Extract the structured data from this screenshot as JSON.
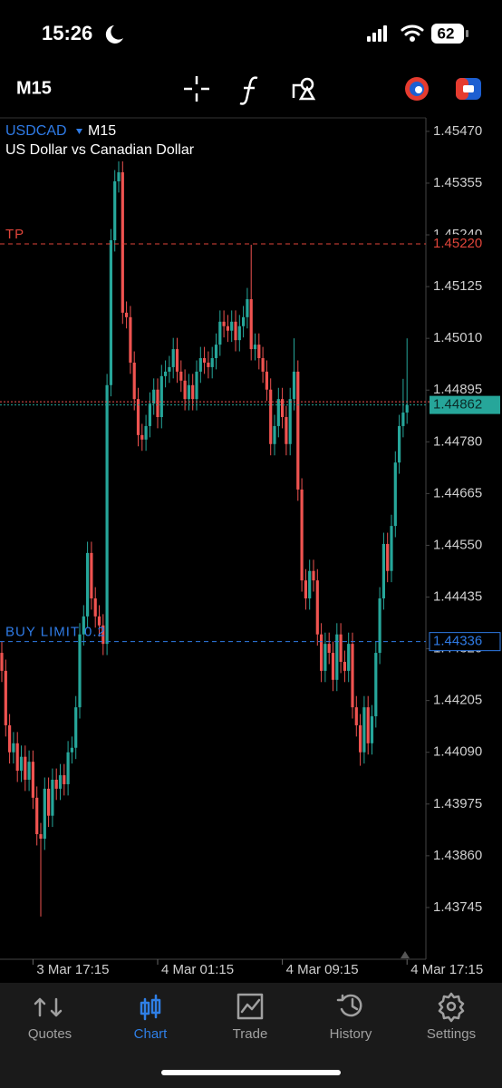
{
  "status_bar": {
    "time": "15:26",
    "battery": 62
  },
  "toolbar": {
    "timeframe": "M15"
  },
  "chart_data": {
    "type": "candlestick",
    "symbol": "USDCAD",
    "timeframe": "M15",
    "subtitle": "US Dollar vs Canadian Dollar",
    "up_color": "#26a69a",
    "down_color": "#ef5350",
    "open": [
      1.44311,
      1.44271,
      1.4415,
      1.4409,
      1.4411,
      1.44049,
      1.4408,
      1.44029,
      1.44069,
      1.43989,
      1.43908,
      1.43898,
      1.44009,
      1.43949,
      1.44029,
      1.44009,
      1.44039,
      1.44019,
      1.4409,
      1.441,
      1.4419,
      1.44352,
      1.44392,
      1.44533,
      1.44432,
      1.44392,
      1.44372,
      1.44331,
      1.44906,
      1.45228,
      1.45359,
      1.45379,
      1.45067,
      1.45057,
      1.44956,
      1.44875,
      1.44795,
      1.44785,
      1.44815,
      1.44865,
      1.44896,
      1.44835,
      1.44926,
      1.44936,
      1.44946,
      1.44986,
      1.44936,
      1.44916,
      1.44875,
      1.44906,
      1.44875,
      1.44936,
      1.44966,
      1.44956,
      1.44946,
      1.44966,
      1.44996,
      1.45047,
      1.45037,
      1.45027,
      1.45047,
      1.45006,
      1.45037,
      1.45057,
      1.45097,
      1.44986,
      1.44996,
      1.44966,
      1.44936,
      1.44896,
      1.44775,
      1.44815,
      1.44875,
      1.44835,
      1.44775,
      1.44875,
      1.44936,
      1.44674,
      1.44472,
      1.44432,
      1.44493,
      1.44472,
      1.44352,
      1.44271,
      1.44331,
      1.44311,
      1.44251,
      1.44352,
      1.44291,
      1.44271,
      1.44331,
      1.4419,
      1.4415,
      1.4409,
      1.4419,
      1.4411,
      1.4417,
      1.44311,
      1.44432,
      1.44553,
      1.44493,
      1.44593,
      1.44734,
      1.44815,
      1.44845
    ],
    "high": [
      1.44336,
      1.44296,
      1.44175,
      1.44135,
      1.44135,
      1.44105,
      1.44105,
      1.44094,
      1.44094,
      1.44014,
      1.43933,
      1.44034,
      1.44034,
      1.44054,
      1.44054,
      1.44064,
      1.44064,
      1.44115,
      1.44125,
      1.44215,
      1.44377,
      1.44417,
      1.44558,
      1.44558,
      1.44457,
      1.44417,
      1.44397,
      1.44931,
      1.45253,
      1.45384,
      1.4542,
      1.45404,
      1.45092,
      1.45082,
      1.44981,
      1.449,
      1.4482,
      1.4484,
      1.4489,
      1.44921,
      1.44921,
      1.44951,
      1.44961,
      1.44971,
      1.45011,
      1.45011,
      1.44961,
      1.44941,
      1.44931,
      1.44931,
      1.44961,
      1.44991,
      1.44991,
      1.44981,
      1.44991,
      1.45021,
      1.45072,
      1.45072,
      1.45062,
      1.45072,
      1.45072,
      1.45062,
      1.45082,
      1.45122,
      1.45218,
      1.45021,
      1.45021,
      1.44991,
      1.44961,
      1.44921,
      1.4484,
      1.449,
      1.449,
      1.4486,
      1.449,
      1.4501,
      1.44961,
      1.44699,
      1.44497,
      1.44518,
      1.44518,
      1.44497,
      1.44377,
      1.44356,
      1.44356,
      1.44336,
      1.44377,
      1.44377,
      1.44316,
      1.44356,
      1.44356,
      1.44215,
      1.44175,
      1.44215,
      1.44215,
      1.44195,
      1.44336,
      1.44457,
      1.44578,
      1.44578,
      1.44618,
      1.44759,
      1.4484,
      1.4492,
      1.4501
    ],
    "low": [
      1.44246,
      1.44125,
      1.44065,
      1.44065,
      1.44024,
      1.44024,
      1.44004,
      1.44004,
      1.43964,
      1.43883,
      1.43725,
      1.43873,
      1.43924,
      1.43924,
      1.43984,
      1.43984,
      1.43994,
      1.43994,
      1.44065,
      1.44075,
      1.44165,
      1.44327,
      1.44367,
      1.44407,
      1.44367,
      1.44347,
      1.44306,
      1.44306,
      1.44881,
      1.45203,
      1.45334,
      1.45042,
      1.45032,
      1.44931,
      1.4485,
      1.4477,
      1.4476,
      1.4476,
      1.4479,
      1.4484,
      1.4481,
      1.4481,
      1.44901,
      1.44911,
      1.44921,
      1.44911,
      1.44891,
      1.4485,
      1.4485,
      1.4485,
      1.4485,
      1.44911,
      1.44931,
      1.44921,
      1.44921,
      1.44941,
      1.44971,
      1.45012,
      1.45002,
      1.45002,
      1.44981,
      1.44981,
      1.45012,
      1.45032,
      1.44961,
      1.44961,
      1.44941,
      1.44911,
      1.44871,
      1.4475,
      1.4475,
      1.4479,
      1.4481,
      1.4475,
      1.4475,
      1.4485,
      1.44649,
      1.44447,
      1.44407,
      1.44407,
      1.44447,
      1.44327,
      1.44246,
      1.44246,
      1.44286,
      1.44226,
      1.44226,
      1.44266,
      1.44246,
      1.44246,
      1.44165,
      1.44125,
      1.4406,
      1.44065,
      1.44085,
      1.44085,
      1.44145,
      1.44286,
      1.44407,
      1.44468,
      1.44468,
      1.44568,
      1.44709,
      1.4479,
      1.4482
    ],
    "close": [
      1.44271,
      1.4415,
      1.4409,
      1.4411,
      1.44049,
      1.4408,
      1.44029,
      1.44069,
      1.43989,
      1.43908,
      1.43898,
      1.44009,
      1.43949,
      1.44029,
      1.44009,
      1.44039,
      1.44019,
      1.4409,
      1.441,
      1.4419,
      1.44352,
      1.44392,
      1.44533,
      1.44432,
      1.44392,
      1.44372,
      1.44331,
      1.44906,
      1.45228,
      1.45359,
      1.45379,
      1.45067,
      1.45057,
      1.44956,
      1.44875,
      1.44795,
      1.44785,
      1.44815,
      1.44865,
      1.44896,
      1.44835,
      1.44926,
      1.44936,
      1.44946,
      1.44986,
      1.44936,
      1.44916,
      1.44875,
      1.44906,
      1.44875,
      1.44936,
      1.44966,
      1.44956,
      1.44946,
      1.44966,
      1.44996,
      1.45047,
      1.45037,
      1.45027,
      1.45047,
      1.45006,
      1.45037,
      1.45057,
      1.45097,
      1.44986,
      1.44996,
      1.44966,
      1.44936,
      1.44896,
      1.44775,
      1.44815,
      1.44875,
      1.44835,
      1.44775,
      1.44875,
      1.44936,
      1.44674,
      1.44472,
      1.44432,
      1.44493,
      1.44472,
      1.44352,
      1.44271,
      1.44331,
      1.44311,
      1.44251,
      1.44352,
      1.44291,
      1.44271,
      1.44331,
      1.4419,
      1.4415,
      1.4409,
      1.4419,
      1.4411,
      1.4417,
      1.44311,
      1.44432,
      1.44553,
      1.44493,
      1.44593,
      1.44734,
      1.44815,
      1.44845,
      1.44862
    ],
    "xlim": [
      -0.5,
      108.8
    ],
    "xticks": [
      {
        "value": 8,
        "label": "3 Mar 17:15"
      },
      {
        "value": 40,
        "label": "4 Mar 01:15"
      },
      {
        "value": 72,
        "label": "4 Mar 09:15"
      },
      {
        "value": 104,
        "label": "4 Mar 17:15"
      }
    ],
    "ylim": [
      1.4363,
      1.455
    ],
    "yticks": [
      {
        "value": 1.4547,
        "label": "1.45470"
      },
      1.45355,
      {
        "value": 1.4524,
        "label": "1.45240"
      },
      1.45125,
      {
        "value": 1.4501,
        "label": "1.45010"
      },
      1.44895,
      {
        "value": 1.4478,
        "label": "1.44780"
      },
      1.44665,
      {
        "value": 1.4455,
        "label": "1.44550"
      },
      1.44435,
      {
        "value": 1.4432,
        "label": "1.44320"
      },
      1.44205,
      {
        "value": 1.4409,
        "label": "1.44090"
      },
      1.43975,
      {
        "value": 1.4386,
        "label": "1.43860"
      },
      1.43745
    ],
    "levels": [
      {
        "name": "TP",
        "price": {
          "value": 1.4522,
          "label": "1.45220"
        },
        "color": "#e0453a"
      },
      {
        "name": "BUY LIMIT 0.2",
        "price": 1.44336,
        "color": "#2f7be6"
      }
    ],
    "ask": 1.44869,
    "current_price": 1.44862
  },
  "tab_bar": {
    "tabs": [
      "Quotes",
      "Chart",
      "Trade",
      "History",
      "Settings"
    ],
    "active": 1
  }
}
